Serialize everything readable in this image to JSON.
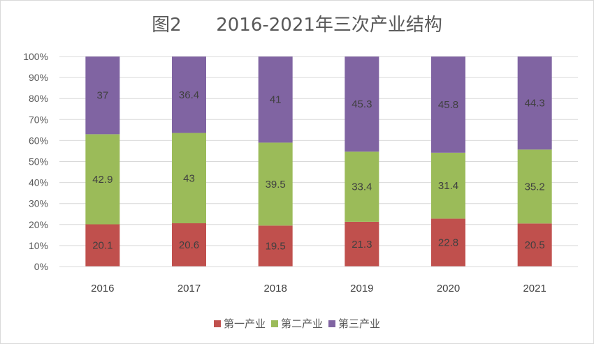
{
  "chart_data": {
    "type": "bar",
    "stacked": true,
    "title": "图2      2016-2021年三次产业结构",
    "categories": [
      "2016",
      "2017",
      "2018",
      "2019",
      "2020",
      "2021"
    ],
    "series": [
      {
        "name": "第一产业",
        "color": "#c0504d",
        "values": [
          20.1,
          20.6,
          19.5,
          21.3,
          22.8,
          20.5
        ]
      },
      {
        "name": "第二产业",
        "color": "#9bbb59",
        "values": [
          42.9,
          43,
          39.5,
          33.4,
          31.4,
          35.2
        ]
      },
      {
        "name": "第三产业",
        "color": "#8064a2",
        "values": [
          37,
          36.4,
          41,
          45.3,
          45.8,
          44.3
        ]
      }
    ],
    "ylim": [
      0,
      100
    ],
    "y_ticks": [
      "0%",
      "10%",
      "20%",
      "30%",
      "40%",
      "50%",
      "60%",
      "70%",
      "80%",
      "90%",
      "100%"
    ],
    "grid": true,
    "legend_position": "bottom"
  }
}
